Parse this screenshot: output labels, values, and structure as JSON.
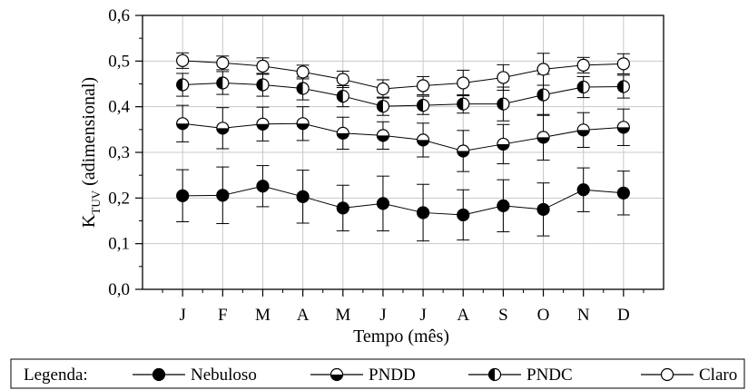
{
  "chart_data": {
    "type": "line",
    "title": "",
    "xlabel": "Tempo (mês)",
    "ylabel": "K",
    "ylabel_sub": "TUV",
    "ylabel_rest": " (adimensional)",
    "categories": [
      "J",
      "F",
      "M",
      "A",
      "M",
      "J",
      "J",
      "A",
      "S",
      "O",
      "N",
      "D"
    ],
    "ylim": [
      0.0,
      0.6
    ],
    "yticks": [
      "0,0",
      "0,1",
      "0,2",
      "0,3",
      "0,4",
      "0,5",
      "0,6"
    ],
    "grid": true,
    "error_bars": true,
    "legend_position": "bottom",
    "legend_title": "Legenda:",
    "series": [
      {
        "name": "Nebuloso",
        "marker": "filled",
        "values": [
          0.205,
          0.206,
          0.226,
          0.203,
          0.178,
          0.188,
          0.168,
          0.163,
          0.183,
          0.175,
          0.218,
          0.211
        ],
        "errors": [
          0.057,
          0.062,
          0.045,
          0.058,
          0.05,
          0.06,
          0.062,
          0.055,
          0.057,
          0.058,
          0.048,
          0.048
        ]
      },
      {
        "name": "PNDD",
        "marker": "top-open-bottom-filled",
        "values": [
          0.363,
          0.353,
          0.362,
          0.363,
          0.342,
          0.337,
          0.327,
          0.303,
          0.318,
          0.333,
          0.349,
          0.355
        ],
        "errors": [
          0.04,
          0.045,
          0.037,
          0.037,
          0.035,
          0.03,
          0.037,
          0.045,
          0.043,
          0.05,
          0.038,
          0.04
        ]
      },
      {
        "name": "PNDC",
        "marker": "left-filled-right-open",
        "values": [
          0.448,
          0.452,
          0.448,
          0.44,
          0.423,
          0.401,
          0.403,
          0.406,
          0.406,
          0.426,
          0.443,
          0.444
        ],
        "errors": [
          0.025,
          0.025,
          0.025,
          0.025,
          0.023,
          0.02,
          0.02,
          0.02,
          0.037,
          0.045,
          0.023,
          0.025
        ]
      },
      {
        "name": "Claro",
        "marker": "open",
        "values": [
          0.501,
          0.496,
          0.489,
          0.476,
          0.46,
          0.439,
          0.446,
          0.452,
          0.464,
          0.482,
          0.491,
          0.494
        ],
        "errors": [
          0.017,
          0.015,
          0.018,
          0.015,
          0.018,
          0.02,
          0.02,
          0.028,
          0.028,
          0.035,
          0.017,
          0.022
        ]
      }
    ]
  }
}
